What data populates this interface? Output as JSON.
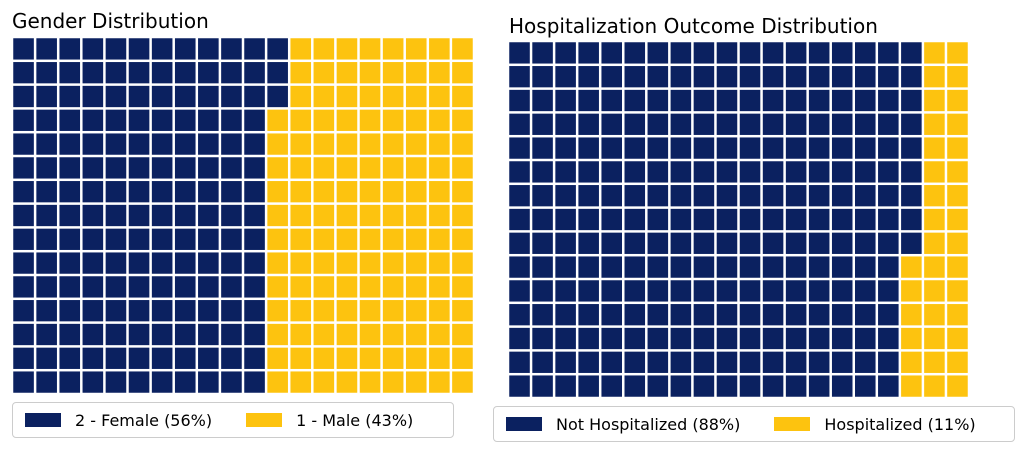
{
  "colors": {
    "navy": "#0b2160",
    "gold": "#fdc30f"
  },
  "chart_data": [
    {
      "type": "waffle",
      "title": "Gender Distribution",
      "rows": 15,
      "columns": 20,
      "categories": [
        {
          "label": "2 - Female (56%)",
          "percent": 56,
          "color": "#0b2160"
        },
        {
          "label": "1 - Male (43%)",
          "percent": 43,
          "color": "#fdc30f"
        }
      ]
    },
    {
      "type": "waffle",
      "title": "Hospitalization Outcome Distribution",
      "rows": 15,
      "columns": 20,
      "categories": [
        {
          "label": "Not Hospitalized (88%)",
          "percent": 88,
          "color": "#0b2160"
        },
        {
          "label": "Hospitalized (11%)",
          "percent": 11,
          "color": "#fdc30f"
        }
      ]
    }
  ]
}
